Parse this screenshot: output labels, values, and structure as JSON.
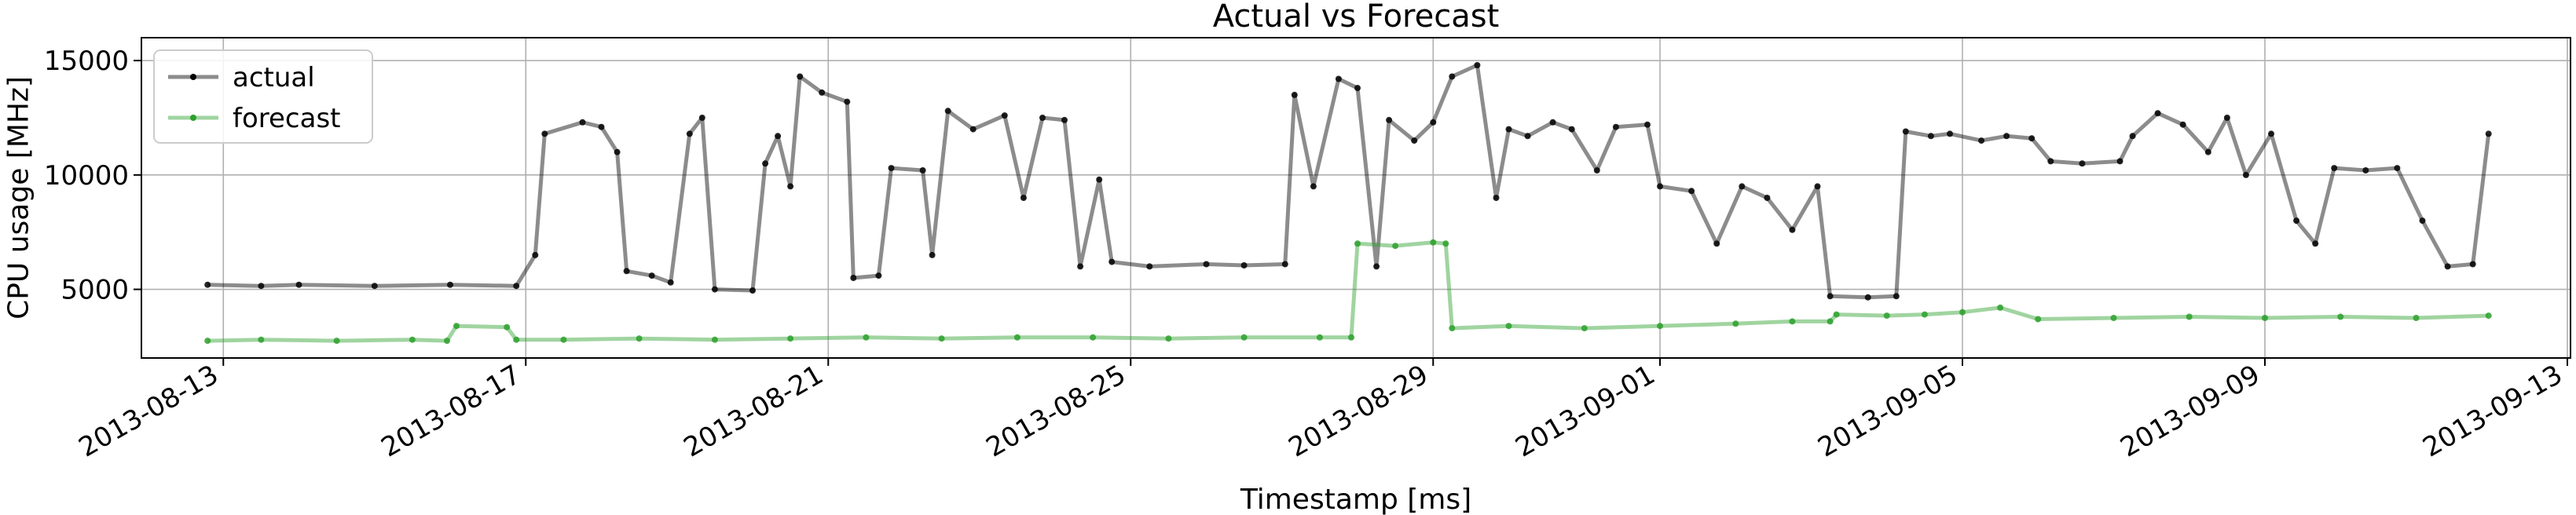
{
  "chart_data": {
    "type": "line",
    "title": "Actual vs Forecast",
    "xlabel": "Timestamp [ms]",
    "ylabel": "CPU usage [MHz]",
    "xlim": [
      "2012-08-12T00:00",
      "2013-09-13T00:00"
    ],
    "x_domain": [
      "2013-08-11T22:00",
      "2013-09-13T01:00"
    ],
    "ylim": [
      2000,
      16000
    ],
    "x_ticks": [
      "2013-08-13",
      "2013-08-17",
      "2013-08-21",
      "2013-08-25",
      "2013-08-29",
      "2013-09-01",
      "2013-09-05",
      "2013-09-09",
      "2013-09-13"
    ],
    "y_ticks": [
      5000,
      10000,
      15000
    ],
    "grid": true,
    "legend": "top-left",
    "series": [
      {
        "name": "actual",
        "color": "#000000",
        "points": [
          [
            "2013-08-12T19:00",
            5200
          ],
          [
            "2013-08-13T12:00",
            5150
          ],
          [
            "2013-08-14T00:00",
            5200
          ],
          [
            "2013-08-15T00:00",
            5150
          ],
          [
            "2013-08-16T00:00",
            5200
          ],
          [
            "2013-08-16T21:00",
            5150
          ],
          [
            "2013-08-17T03:00",
            6500
          ],
          [
            "2013-08-17T06:00",
            11800
          ],
          [
            "2013-08-17T18:00",
            12300
          ],
          [
            "2013-08-18T00:00",
            12100
          ],
          [
            "2013-08-18T05:00",
            11000
          ],
          [
            "2013-08-18T08:00",
            5800
          ],
          [
            "2013-08-18T16:00",
            5600
          ],
          [
            "2013-08-18T22:00",
            5300
          ],
          [
            "2013-08-19T04:00",
            11800
          ],
          [
            "2013-08-19T08:00",
            12500
          ],
          [
            "2013-08-19T12:00",
            5000
          ],
          [
            "2013-08-20T00:00",
            4950
          ],
          [
            "2013-08-20T04:00",
            10500
          ],
          [
            "2013-08-20T08:00",
            11700
          ],
          [
            "2013-08-20T12:00",
            9500
          ],
          [
            "2013-08-20T15:00",
            14300
          ],
          [
            "2013-08-20T22:00",
            13600
          ],
          [
            "2013-08-21T06:00",
            13200
          ],
          [
            "2013-08-21T08:00",
            5500
          ],
          [
            "2013-08-21T16:00",
            5600
          ],
          [
            "2013-08-21T20:00",
            10300
          ],
          [
            "2013-08-22T06:00",
            10200
          ],
          [
            "2013-08-22T09:00",
            6500
          ],
          [
            "2013-08-22T14:00",
            12800
          ],
          [
            "2013-08-22T22:00",
            12000
          ],
          [
            "2013-08-23T08:00",
            12600
          ],
          [
            "2013-08-23T14:00",
            9000
          ],
          [
            "2013-08-23T20:00",
            12500
          ],
          [
            "2013-08-24T03:00",
            12400
          ],
          [
            "2013-08-24T08:00",
            6000
          ],
          [
            "2013-08-24T14:00",
            9800
          ],
          [
            "2013-08-24T18:00",
            6200
          ],
          [
            "2013-08-25T06:00",
            6000
          ],
          [
            "2013-08-26T00:00",
            6100
          ],
          [
            "2013-08-26T12:00",
            6050
          ],
          [
            "2013-08-27T01:00",
            6100
          ],
          [
            "2013-08-27T04:00",
            13500
          ],
          [
            "2013-08-27T10:00",
            9500
          ],
          [
            "2013-08-27T18:00",
            14200
          ],
          [
            "2013-08-28T00:00",
            13800
          ],
          [
            "2013-08-28T06:00",
            6000
          ],
          [
            "2013-08-28T10:00",
            12400
          ],
          [
            "2013-08-28T18:00",
            11500
          ],
          [
            "2013-08-29T00:00",
            12300
          ],
          [
            "2013-08-29T06:00",
            14300
          ],
          [
            "2013-08-29T14:00",
            14800
          ],
          [
            "2013-08-29T20:00",
            9000
          ],
          [
            "2013-08-30T00:00",
            12000
          ],
          [
            "2013-08-30T06:00",
            11700
          ],
          [
            "2013-08-30T14:00",
            12300
          ],
          [
            "2013-08-30T20:00",
            12000
          ],
          [
            "2013-08-31T04:00",
            10200
          ],
          [
            "2013-08-31T10:00",
            12100
          ],
          [
            "2013-08-31T20:00",
            12200
          ],
          [
            "2013-09-01T00:00",
            9500
          ],
          [
            "2013-09-01T10:00",
            9300
          ],
          [
            "2013-09-01T18:00",
            7000
          ],
          [
            "2013-09-02T02:00",
            9500
          ],
          [
            "2013-09-02T10:00",
            9000
          ],
          [
            "2013-09-02T18:00",
            7600
          ],
          [
            "2013-09-03T02:00",
            9500
          ],
          [
            "2013-09-03T06:00",
            4700
          ],
          [
            "2013-09-03T18:00",
            4650
          ],
          [
            "2013-09-04T03:00",
            4700
          ],
          [
            "2013-09-04T06:00",
            11900
          ],
          [
            "2013-09-04T14:00",
            11700
          ],
          [
            "2013-09-04T20:00",
            11800
          ],
          [
            "2013-09-05T06:00",
            11500
          ],
          [
            "2013-09-05T14:00",
            11700
          ],
          [
            "2013-09-05T22:00",
            11600
          ],
          [
            "2013-09-06T04:00",
            10600
          ],
          [
            "2013-09-06T14:00",
            10500
          ],
          [
            "2013-09-07T02:00",
            10600
          ],
          [
            "2013-09-07T06:00",
            11700
          ],
          [
            "2013-09-07T14:00",
            12700
          ],
          [
            "2013-09-07T22:00",
            12200
          ],
          [
            "2013-09-08T06:00",
            11000
          ],
          [
            "2013-09-08T12:00",
            12500
          ],
          [
            "2013-09-08T18:00",
            10000
          ],
          [
            "2013-09-09T02:00",
            11800
          ],
          [
            "2013-09-09T10:00",
            8000
          ],
          [
            "2013-09-09T16:00",
            7000
          ],
          [
            "2013-09-09T22:00",
            10300
          ],
          [
            "2013-09-10T08:00",
            10200
          ],
          [
            "2013-09-10T18:00",
            10300
          ],
          [
            "2013-09-11T02:00",
            8000
          ],
          [
            "2013-09-11T10:00",
            6000
          ],
          [
            "2013-09-11T18:00",
            6100
          ],
          [
            "2013-09-11T23:00",
            11800
          ]
        ]
      },
      {
        "name": "forecast",
        "color": "#2ca02c",
        "points": [
          [
            "2013-08-12T19:00",
            2750
          ],
          [
            "2013-08-13T12:00",
            2800
          ],
          [
            "2013-08-14T12:00",
            2750
          ],
          [
            "2013-08-15T12:00",
            2800
          ],
          [
            "2013-08-15T23:00",
            2750
          ],
          [
            "2013-08-16T02:00",
            3400
          ],
          [
            "2013-08-16T18:00",
            3350
          ],
          [
            "2013-08-16T21:00",
            2800
          ],
          [
            "2013-08-17T12:00",
            2800
          ],
          [
            "2013-08-18T12:00",
            2850
          ],
          [
            "2013-08-19T12:00",
            2800
          ],
          [
            "2013-08-20T12:00",
            2850
          ],
          [
            "2013-08-21T12:00",
            2900
          ],
          [
            "2013-08-22T12:00",
            2850
          ],
          [
            "2013-08-23T12:00",
            2900
          ],
          [
            "2013-08-24T12:00",
            2900
          ],
          [
            "2013-08-25T12:00",
            2850
          ],
          [
            "2013-08-26T12:00",
            2900
          ],
          [
            "2013-08-27T12:00",
            2900
          ],
          [
            "2013-08-27T22:00",
            2900
          ],
          [
            "2013-08-28T00:00",
            7000
          ],
          [
            "2013-08-28T12:00",
            6900
          ],
          [
            "2013-08-29T00:00",
            7050
          ],
          [
            "2013-08-29T04:00",
            7000
          ],
          [
            "2013-08-29T06:00",
            3300
          ],
          [
            "2013-08-30T00:00",
            3400
          ],
          [
            "2013-08-31T00:00",
            3300
          ],
          [
            "2013-09-01T00:00",
            3400
          ],
          [
            "2013-09-02T00:00",
            3500
          ],
          [
            "2013-09-02T18:00",
            3600
          ],
          [
            "2013-09-03T06:00",
            3600
          ],
          [
            "2013-09-03T08:00",
            3900
          ],
          [
            "2013-09-04T00:00",
            3850
          ],
          [
            "2013-09-04T12:00",
            3900
          ],
          [
            "2013-09-05T00:00",
            4000
          ],
          [
            "2013-09-05T12:00",
            4200
          ],
          [
            "2013-09-06T00:00",
            3700
          ],
          [
            "2013-09-07T00:00",
            3750
          ],
          [
            "2013-09-08T00:00",
            3800
          ],
          [
            "2013-09-09T00:00",
            3750
          ],
          [
            "2013-09-10T00:00",
            3800
          ],
          [
            "2013-09-11T00:00",
            3750
          ],
          [
            "2013-09-11T23:00",
            3850
          ]
        ]
      }
    ]
  }
}
